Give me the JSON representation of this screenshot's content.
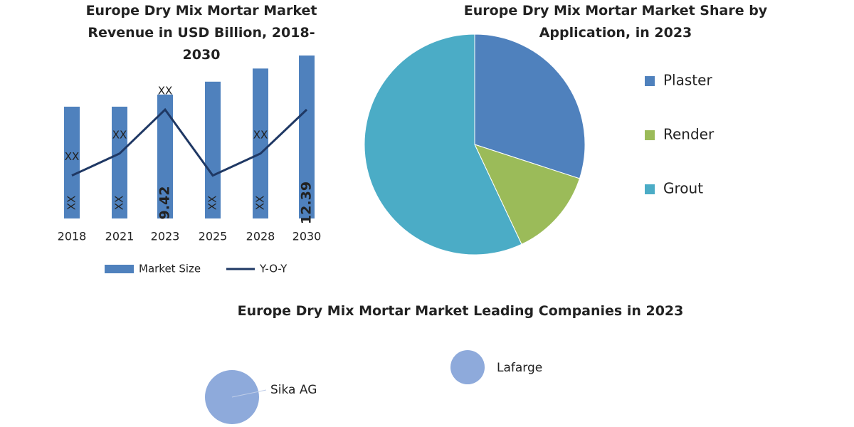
{
  "chart_data": [
    {
      "type": "bar",
      "title": "Europe Dry Mix Mortar Market Revenue in USD Billion, 2018-2030",
      "categories": [
        "2018",
        "2021",
        "2023",
        "2025",
        "2028",
        "2030"
      ],
      "series": [
        {
          "name": "Market Size",
          "color": "#4f81bd",
          "values": [
            8.5,
            8.5,
            9.42,
            10.4,
            11.4,
            12.39
          ],
          "value_labels": [
            "XX",
            "XX",
            "9.42",
            "XX",
            "XX",
            "12.39"
          ]
        },
        {
          "name": "Y-O-Y",
          "type": "line",
          "color": "#1f3864",
          "values": [
            3,
            5,
            9,
            3,
            5,
            9
          ],
          "value_labels": [
            "XX",
            "XX",
            "XX",
            null,
            "XX",
            null
          ]
        }
      ]
    },
    {
      "type": "pie",
      "title": "Europe Dry Mix Mortar Market Share by Application, in 2023",
      "categories": [
        "Plaster",
        "Render",
        "Grout"
      ],
      "values": [
        30,
        13,
        57
      ],
      "colors": [
        "#4f81bd",
        "#9bbb59",
        "#4bacc6"
      ]
    },
    {
      "type": "bubble",
      "title": "Europe Dry Mix Mortar Market Leading Companies in 2023",
      "categories": [
        "Sika AG",
        "Lafarge"
      ],
      "values": [
        2.5,
        1
      ],
      "color": "#8eaadb"
    }
  ]
}
